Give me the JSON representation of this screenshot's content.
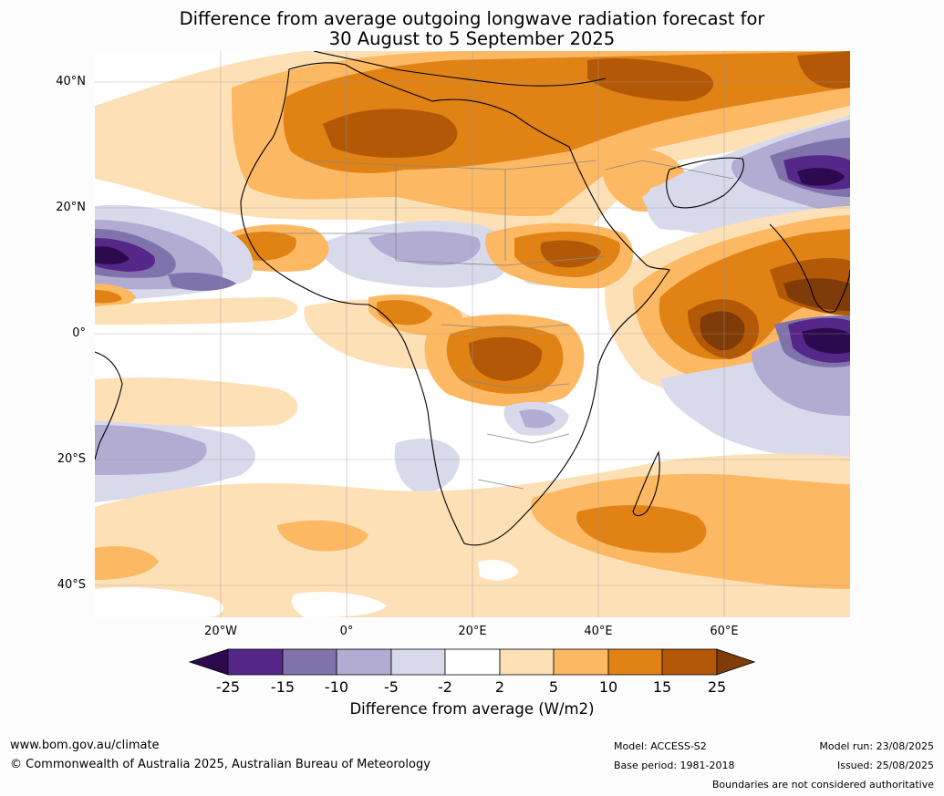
{
  "title": {
    "line1": "Difference from average outgoing longwave radiation forecast for",
    "line2": "30 August to 5 September 2025"
  },
  "map": {
    "region": "Africa, Indian Ocean and Atlantic Ocean",
    "lat_labels": [
      "40°N",
      "20°N",
      "0°",
      "20°S",
      "40°S"
    ],
    "lon_labels": [
      "20°W",
      "0°",
      "20°E",
      "40°E",
      "60°E"
    ]
  },
  "colorbar": {
    "ticks": [
      "-25",
      "-15",
      "-10",
      "-5",
      "-2",
      "2",
      "5",
      "10",
      "15",
      "25"
    ],
    "colors": {
      "lt_-25": "#2d0a4e",
      "-25_-15": "#542788",
      "-15_-10": "#8073ac",
      "-10_-5": "#b2abd2",
      "-5_-2": "#d8daeb",
      "-2_2": "#ffffff",
      "2_5": "#fee0b6",
      "5_10": "#fdb863",
      "10_15": "#e08214",
      "15_25": "#b35806",
      "gt_25": "#7f3b08"
    },
    "label": "Difference from average (W/m2)"
  },
  "footer": {
    "website": "www.bom.gov.au/climate",
    "copyright": "© Commonwealth of Australia 2025, Australian Bureau of Meteorology",
    "model": "Model: ACCESS-S2",
    "base_period": "Base period: 1981-2018",
    "model_run": "Model run: 23/08/2025",
    "issued": "Issued: 25/08/2025",
    "disclaimer": "Boundaries are not considered authoritative"
  }
}
